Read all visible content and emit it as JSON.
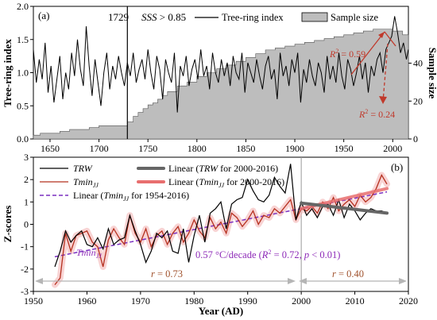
{
  "chart_data": [
    {
      "panel_label": "(a)",
      "type": "line",
      "annotations": {
        "year_marker": "1729",
        "sss_text": "SSS",
        "sss_rest": " > 0.85",
        "r2_a": "R",
        "r2_a_val": " = 0.59",
        "r2_b": "R",
        "r2_b_val": " = 0.24",
        "sup2": "2"
      },
      "legend": {
        "line": "Tree-ring index",
        "area": "Sample size"
      },
      "ylabel_left": "Tree-ring index",
      "ylabel_right": "Sample size",
      "x_ticks": [
        "1650",
        "1700",
        "1750",
        "1800",
        "1850",
        "1900",
        "1950",
        "2000"
      ],
      "y_ticks_left": [
        "0.0",
        "0.5",
        "1.0",
        "1.5",
        "2.0"
      ],
      "y_ticks_right": [
        "0",
        "20",
        "40"
      ],
      "xlim": [
        1633,
        2016
      ],
      "ylim_left": [
        0,
        2.0
      ],
      "ylim_right": [
        0,
        70
      ],
      "sss_year": 1729,
      "sample_size": {
        "x": [
          1633,
          1640,
          1660,
          1670,
          1690,
          1700,
          1729,
          1735,
          1740,
          1745,
          1750,
          1755,
          1760,
          1765,
          1770,
          1780,
          1790,
          1800,
          1810,
          1820,
          1830,
          1840,
          1850,
          1860,
          1870,
          1880,
          1890,
          1900,
          1910,
          1920,
          1930,
          1940,
          1950,
          1960,
          1970,
          1980,
          1990,
          2000,
          2010,
          2016
        ],
        "values": [
          2,
          3,
          4,
          5,
          6,
          7,
          9,
          12,
          14,
          16,
          18,
          19,
          21,
          23,
          25,
          28,
          30,
          33,
          35,
          37,
          39,
          41,
          43,
          45,
          47,
          48,
          49,
          50,
          51,
          52,
          53,
          54,
          55,
          56,
          57,
          58,
          58,
          57,
          55,
          52
        ]
      },
      "tree_ring": {
        "x": [
          1633,
          1636,
          1639,
          1642,
          1645,
          1648,
          1651,
          1654,
          1657,
          1660,
          1663,
          1666,
          1669,
          1672,
          1675,
          1678,
          1681,
          1684,
          1687,
          1690,
          1693,
          1696,
          1699,
          1702,
          1705,
          1708,
          1711,
          1714,
          1717,
          1720,
          1723,
          1726,
          1729,
          1732,
          1735,
          1738,
          1741,
          1744,
          1747,
          1750,
          1753,
          1756,
          1759,
          1762,
          1765,
          1768,
          1771,
          1774,
          1777,
          1780,
          1783,
          1786,
          1789,
          1792,
          1795,
          1798,
          1801,
          1804,
          1807,
          1810,
          1813,
          1816,
          1819,
          1822,
          1825,
          1828,
          1831,
          1834,
          1837,
          1840,
          1843,
          1846,
          1849,
          1852,
          1855,
          1858,
          1861,
          1864,
          1867,
          1870,
          1873,
          1876,
          1879,
          1882,
          1885,
          1888,
          1891,
          1894,
          1897,
          1900,
          1903,
          1906,
          1909,
          1912,
          1915,
          1918,
          1921,
          1924,
          1927,
          1930,
          1933,
          1936,
          1939,
          1942,
          1945,
          1948,
          1951,
          1954,
          1957,
          1960,
          1963,
          1966,
          1969,
          1972,
          1975,
          1978,
          1981,
          1984,
          1987,
          1990,
          1993,
          1996,
          1999,
          2002,
          2005,
          2008,
          2011,
          2014,
          2016
        ],
        "values": [
          1.35,
          0.85,
          1.2,
          0.9,
          1.45,
          0.7,
          1.1,
          0.55,
          0.9,
          1.25,
          0.6,
          1.0,
          0.75,
          1.3,
          0.95,
          1.5,
          1.05,
          0.8,
          1.7,
          1.1,
          0.65,
          1.2,
          0.85,
          0.5,
          1.0,
          1.3,
          0.75,
          1.1,
          0.9,
          1.25,
          1.0,
          0.8,
          1.15,
          0.95,
          1.3,
          0.85,
          1.05,
          1.2,
          0.9,
          1.35,
          1.0,
          0.75,
          1.25,
          1.05,
          0.6,
          1.2,
          1.0,
          0.85,
          1.3,
          0.4,
          1.1,
          0.95,
          1.25,
          0.8,
          1.05,
          1.2,
          0.9,
          1.35,
          0.95,
          1.1,
          0.75,
          1.3,
          1.0,
          0.85,
          1.2,
          0.95,
          1.15,
          0.8,
          1.25,
          1.0,
          0.9,
          1.3,
          0.7,
          1.15,
          1.0,
          0.85,
          1.2,
          0.95,
          0.75,
          1.1,
          1.25,
          0.9,
          1.05,
          0.6,
          1.3,
          0.95,
          1.1,
          0.8,
          1.2,
          1.0,
          1.3,
          0.55,
          1.05,
          0.85,
          1.2,
          0.95,
          0.8,
          1.15,
          1.0,
          0.7,
          1.25,
          0.9,
          1.1,
          0.85,
          1.3,
          0.95,
          0.75,
          1.2,
          1.05,
          0.8,
          1.0,
          1.25,
          0.9,
          1.15,
          0.7,
          1.1,
          0.95,
          1.2,
          1.3,
          1.0,
          1.35,
          1.45,
          1.55,
          1.85,
          1.6,
          1.3,
          1.45,
          1.2,
          1.35
        ]
      }
    },
    {
      "panel_label": "(b)",
      "type": "line",
      "ylabel": "Z-scores",
      "xlabel": "Year (AD)",
      "x_ticks": [
        "1950",
        "1960",
        "1970",
        "1980",
        "1990",
        "2000",
        "2010",
        "2020"
      ],
      "y_ticks": [
        "-3",
        "-2",
        "-1",
        "0",
        "1",
        "2",
        "3"
      ],
      "xlim": [
        1950,
        2020
      ],
      "ylim": [
        -3,
        3
      ],
      "legend": {
        "trw": "TRW",
        "tmin_base": "Tmin",
        "tmin_sub": "JJ",
        "lin_trw_pre": "Linear (",
        "lin_trw_it": "TRW",
        "lin_trw_post": " for 2000-2016)",
        "lin_tmin_pre": "Linear (",
        "lin_tmin_post1": " for 2000-2016)",
        "lin_tmin_post2": " for 1954-2016)"
      },
      "annotations": {
        "tmin_label_base": "Tmin",
        "tmin_label_sub": "JJ",
        "trend_text_pre": "0.57 °C/decade (",
        "trend_r": "R",
        "trend_r_rest": " = 0.72, ",
        "trend_p": "p",
        "trend_p_rest": " < 0.01)",
        "sup2": "2",
        "r1_it": "r",
        "r1_rest": " = 0.73",
        "r2_it": "r",
        "r2_rest": " = 0.40"
      },
      "series": [
        {
          "name": "TRW",
          "x": [
            1954,
            1955,
            1956,
            1957,
            1958,
            1959,
            1960,
            1961,
            1962,
            1963,
            1964,
            1965,
            1966,
            1967,
            1968,
            1969,
            1970,
            1971,
            1972,
            1973,
            1974,
            1975,
            1976,
            1977,
            1978,
            1979,
            1980,
            1981,
            1982,
            1983,
            1984,
            1985,
            1986,
            1987,
            1988,
            1989,
            1990,
            1991,
            1992,
            1993,
            1994,
            1995,
            1996,
            1997,
            1998,
            1999,
            2000,
            2001,
            2002,
            2003,
            2004,
            2005,
            2006,
            2007,
            2008,
            2009,
            2010,
            2011,
            2012,
            2013,
            2014,
            2015,
            2016
          ],
          "values": [
            -1.9,
            -1.2,
            -0.3,
            -0.8,
            -0.5,
            -0.3,
            -0.9,
            -1.0,
            -0.6,
            -1.1,
            -0.2,
            -0.9,
            -0.7,
            -0.6,
            0.4,
            -0.3,
            -0.9,
            -1.7,
            -1.2,
            -0.4,
            -0.6,
            -0.3,
            -1.2,
            -1.3,
            -0.2,
            -1.7,
            -0.5,
            0.4,
            -0.8,
            0.5,
            0.7,
            1.0,
            -0.2,
            0.9,
            1.1,
            1.2,
            2.0,
            1.5,
            1.1,
            1.0,
            1.3,
            2.1,
            1.7,
            1.4,
            2.7,
            0.2,
            1.0,
            0.4,
            0.7,
            0.3,
            0.8,
            0.9,
            0.4,
            1.1,
            0.3,
            0.9,
            0.6,
            0.2,
            0.5,
            0.7,
            0.6,
            0.6,
            0.5
          ]
        },
        {
          "name": "TminJJ",
          "x": [
            1954,
            1955,
            1956,
            1957,
            1958,
            1959,
            1960,
            1961,
            1962,
            1963,
            1964,
            1965,
            1966,
            1967,
            1968,
            1969,
            1970,
            1971,
            1972,
            1973,
            1974,
            1975,
            1976,
            1977,
            1978,
            1979,
            1980,
            1981,
            1982,
            1983,
            1984,
            1985,
            1986,
            1987,
            1988,
            1989,
            1990,
            1991,
            1992,
            1993,
            1994,
            1995,
            1996,
            1997,
            1998,
            1999,
            2000,
            2001,
            2002,
            2003,
            2004,
            2005,
            2006,
            2007,
            2008,
            2009,
            2010,
            2011,
            2012,
            2013,
            2014,
            2015,
            2016
          ],
          "values": [
            -2.7,
            -2.4,
            -0.4,
            -1.2,
            -0.5,
            -0.4,
            -0.3,
            -0.8,
            -1.0,
            -1.9,
            -0.7,
            -0.2,
            -0.6,
            -0.9,
            0.4,
            -0.4,
            -0.8,
            -0.2,
            -1.0,
            -0.5,
            -0.3,
            -0.9,
            -0.4,
            -0.1,
            -0.8,
            -0.4,
            0.2,
            -0.3,
            -0.6,
            0.3,
            -0.2,
            0.1,
            -0.4,
            0.5,
            0.3,
            -0.1,
            0.2,
            0.6,
            0.0,
            0.4,
            0.3,
            0.7,
            0.5,
            0.8,
            1.1,
            0.2,
            0.7,
            0.6,
            0.8,
            0.5,
            1.0,
            0.7,
            1.2,
            0.6,
            0.9,
            1.1,
            0.8,
            1.3,
            1.0,
            1.2,
            1.6,
            2.2,
            1.8
          ]
        }
      ],
      "trend_trw": {
        "x": [
          2000,
          2016
        ],
        "y": [
          0.95,
          0.5
        ]
      },
      "trend_tmin_recent": {
        "x": [
          2000,
          2016
        ],
        "y": [
          0.7,
          1.6
        ]
      },
      "trend_tmin_long": {
        "x": [
          1954,
          2016
        ],
        "y": [
          -1.45,
          1.45
        ]
      },
      "split_year": 2000
    }
  ],
  "colors": {
    "trw": "#000000",
    "tmin": "#b5301f",
    "tmin_band": "#f4b6b6",
    "trend_trw": "#666666",
    "trend_tmin": "#e86f6f",
    "trend_long": "#7a2fc0",
    "sample_fill": "#bdbdbd",
    "annotation_red": "#c0392b",
    "purple_text": "#8e2bb8",
    "r_text": "#a0522d",
    "arrow_gray": "#b5b5b5"
  }
}
